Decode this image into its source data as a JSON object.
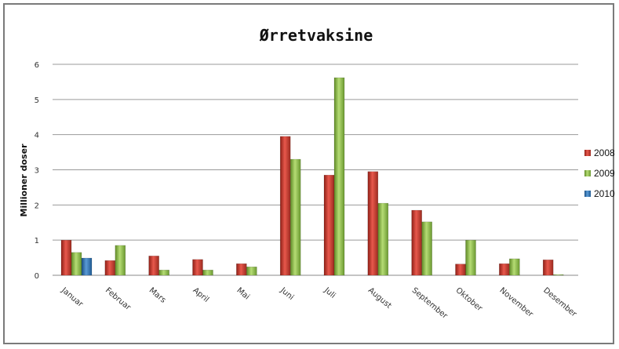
{
  "chart_data": {
    "type": "bar",
    "title": "Ørretvaksine",
    "xlabel": "",
    "ylabel": "Millioner doser",
    "ylim": [
      0,
      6
    ],
    "yticks": [
      0,
      1,
      2,
      3,
      4,
      5,
      6
    ],
    "grid": true,
    "legend_position": "right",
    "categories": [
      "Januar",
      "Februar",
      "Mars",
      "April",
      "Mai",
      "Juni",
      "Juli",
      "August",
      "September",
      "Oktober",
      "November",
      "Desember"
    ],
    "series": [
      {
        "name": "2008",
        "color": "#c0392b",
        "values": [
          1.0,
          0.42,
          0.55,
          0.45,
          0.33,
          3.95,
          2.85,
          2.95,
          1.85,
          0.32,
          0.33,
          0.44
        ]
      },
      {
        "name": "2009",
        "color": "#8fbc45",
        "values": [
          0.65,
          0.85,
          0.15,
          0.15,
          0.24,
          3.3,
          5.62,
          2.05,
          1.52,
          1.0,
          0.47,
          0.02
        ]
      },
      {
        "name": "2010",
        "color": "#2f75b5",
        "values": [
          0.49,
          null,
          null,
          null,
          null,
          null,
          null,
          null,
          null,
          null,
          null,
          null
        ]
      }
    ]
  }
}
